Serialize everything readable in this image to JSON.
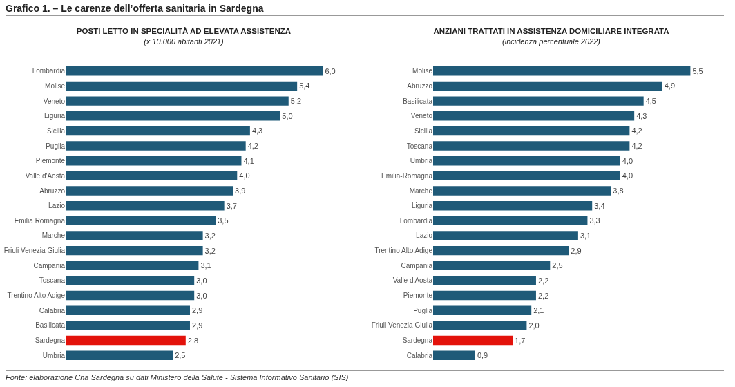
{
  "chart_data": [
    {
      "type": "bar",
      "orientation": "horizontal",
      "title": "POSTI LETTO IN SPECIALITÀ AD ELEVATA ASSISTENZA",
      "subtitle": "(x 10.000 abitanti 2021)",
      "annotations": [
        "Grafico 1. – Le carenze dell’offerta sanitaria in Sardegna"
      ],
      "tick_labels": "y",
      "categories": [
        "Lombardia",
        "Molise",
        "Veneto",
        "Liguria",
        "Sicilia",
        "Puglia",
        "Piemonte",
        "Valle d'Aosta",
        "Abruzzo",
        "Lazio",
        "Emilia Romagna",
        "Marche",
        "Friuli Venezia Giulia",
        "Campania",
        "Toscana",
        "Trentino Alto Adige",
        "Calabria",
        "Basilicata",
        "Sardegna",
        "Umbria"
      ],
      "values": [
        6.0,
        5.4,
        5.2,
        5.0,
        4.3,
        4.2,
        4.1,
        4.0,
        3.9,
        3.7,
        3.5,
        3.2,
        3.2,
        3.1,
        3.0,
        3.0,
        2.9,
        2.9,
        2.8,
        2.5
      ],
      "value_labels": [
        "6,0",
        "5,4",
        "5,2",
        "5,0",
        "4,3",
        "4,2",
        "4,1",
        "4,0",
        "3,9",
        "3,7",
        "3,5",
        "3,2",
        "3,2",
        "3,1",
        "3,0",
        "3,0",
        "2,9",
        "2,9",
        "2,8",
        "2,5"
      ],
      "colors": [
        "#1f5a78",
        "#1f5a78",
        "#1f5a78",
        "#1f5a78",
        "#1f5a78",
        "#1f5a78",
        "#1f5a78",
        "#1f5a78",
        "#1f5a78",
        "#1f5a78",
        "#1f5a78",
        "#1f5a78",
        "#1f5a78",
        "#1f5a78",
        "#1f5a78",
        "#1f5a78",
        "#1f5a78",
        "#1f5a78",
        "#e3120b",
        "#1f5a78"
      ]
    },
    {
      "type": "bar",
      "orientation": "horizontal",
      "title": "ANZIANI TRATTATI IN ASSISTENZA DOMICILIARE INTEGRATA",
      "subtitle": "(incidenza percentuale 2022)",
      "annotations": [
        "Fonte: elaborazione Cna Sardegna su dati Ministero della Salute -  Sistema Informativo Sanitario (SIS)"
      ],
      "tick_labels": "y",
      "categories": [
        "Molise",
        "Abruzzo",
        "Basilicata",
        "Veneto",
        "Sicilia",
        "Toscana",
        "Umbria",
        "Emilia-Romagna",
        "Marche",
        "Liguria",
        "Lombardia",
        "Lazio",
        "Trentino Alto Adige",
        "Campania",
        "Valle d'Aosta",
        "Piemonte",
        "Puglia",
        "Friuli Venezia Giulia",
        "Sardegna",
        "Calabria"
      ],
      "values": [
        5.5,
        4.9,
        4.5,
        4.3,
        4.2,
        4.2,
        4.0,
        4.0,
        3.8,
        3.4,
        3.3,
        3.1,
        2.9,
        2.5,
        2.2,
        2.2,
        2.1,
        2.0,
        1.7,
        0.9
      ],
      "value_labels": [
        "5,5",
        "4,9",
        "4,5",
        "4,3",
        "4,2",
        "4,2",
        "4,0",
        "4,0",
        "3,8",
        "3,4",
        "3,3",
        "3,1",
        "2,9",
        "2,5",
        "2,2",
        "2,2",
        "2,1",
        "2,0",
        "1,7",
        "0,9"
      ],
      "colors": [
        "#1f5a78",
        "#1f5a78",
        "#1f5a78",
        "#1f5a78",
        "#1f5a78",
        "#1f5a78",
        "#1f5a78",
        "#1f5a78",
        "#1f5a78",
        "#1f5a78",
        "#1f5a78",
        "#1f5a78",
        "#1f5a78",
        "#1f5a78",
        "#1f5a78",
        "#1f5a78",
        "#1f5a78",
        "#1f5a78",
        "#e3120b",
        "#1f5a78"
      ]
    }
  ]
}
